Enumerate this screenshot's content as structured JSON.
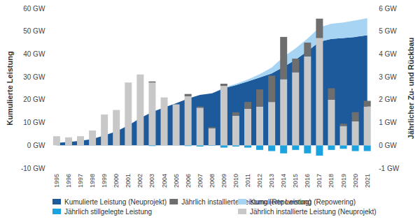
{
  "chart_data": {
    "type": "bar",
    "categories": [
      "1995",
      "1996",
      "1997",
      "1998",
      "1999",
      "2000",
      "2001",
      "2002",
      "2003",
      "2004",
      "2005",
      "2006",
      "2007",
      "2008",
      "2009",
      "2010",
      "2011",
      "2012",
      "2013",
      "2014",
      "2015",
      "2016",
      "2017",
      "2018",
      "2019",
      "2020",
      "2021"
    ],
    "ylabel": "Kumulierte Leistung",
    "y2label": "Jährlicher Zu- und Rückbau",
    "ylim": [
      -10,
      60
    ],
    "yticks": [
      {
        "value": -10,
        "label": "-10 GW"
      },
      {
        "value": 0,
        "label": "0 GW"
      },
      {
        "value": 10,
        "label": "10 GW"
      },
      {
        "value": 20,
        "label": "20 GW"
      },
      {
        "value": 30,
        "label": "30 GW"
      },
      {
        "value": 40,
        "label": "40 GW"
      },
      {
        "value": 50,
        "label": "50 GW"
      },
      {
        "value": 60,
        "label": "60 GW"
      }
    ],
    "y2lim": [
      -1,
      6
    ],
    "y2ticks": [
      {
        "value": -1,
        "label": "-1 GW"
      },
      {
        "value": 0,
        "label": "0 GW"
      },
      {
        "value": 1,
        "label": "1 GW"
      },
      {
        "value": 2,
        "label": "2 GW"
      },
      {
        "value": 3,
        "label": "3 GW"
      },
      {
        "value": 4,
        "label": "4 GW"
      },
      {
        "value": 5,
        "label": "5 GW"
      },
      {
        "value": 6,
        "label": "6 GW"
      }
    ],
    "grid": false,
    "legend": "bottom",
    "stacked": true,
    "series": [
      {
        "name": "Kumulierte Leistung (Neuprojekt)",
        "type": "area",
        "color": "#1c5a9c",
        "values": [
          1.1,
          1.5,
          2.0,
          2.8,
          4.4,
          6.1,
          8.7,
          11.9,
          14.6,
          16.6,
          18.4,
          20.5,
          22.1,
          22.8,
          25.0,
          26.4,
          28.0,
          29.7,
          31.5,
          34.4,
          37.5,
          41.3,
          45.4,
          46.6,
          47.0,
          47.5,
          48.2
        ]
      },
      {
        "name": "Kumulierte Leistung (Repowering)",
        "type": "area",
        "color": "#a6d4f2",
        "values": [
          0,
          0,
          0,
          0,
          0,
          0,
          0,
          0,
          0,
          0,
          0,
          0,
          0,
          0,
          0.3,
          0.5,
          0.8,
          1.5,
          2.6,
          4.4,
          5.0,
          5.5,
          6.3,
          6.7,
          6.8,
          7.2,
          7.5
        ]
      },
      {
        "name": "Jährlich stillgelegte Leistung",
        "type": "bar",
        "axis": "y2",
        "color": "#1aa3e0",
        "values": [
          0,
          0,
          0,
          0,
          0,
          0,
          0,
          0,
          -0.03,
          0,
          0,
          -0.03,
          -0.05,
          -0.02,
          -0.1,
          -0.05,
          -0.1,
          -0.2,
          -0.25,
          -0.35,
          -0.2,
          -0.35,
          -0.45,
          -0.2,
          -0.15,
          -0.25,
          -0.25
        ]
      },
      {
        "name": "Jährlich installierte Leistung (Neuprojekt)",
        "type": "bar",
        "axis": "y2",
        "color": "#c8c8c8",
        "values": [
          0.4,
          0.35,
          0.4,
          0.65,
          1.35,
          1.55,
          2.75,
          3.1,
          2.75,
          2.1,
          1.8,
          2.15,
          1.65,
          0.75,
          2.6,
          1.3,
          1.6,
          1.7,
          1.9,
          2.9,
          3.2,
          3.9,
          4.7,
          2.0,
          0.85,
          1.05,
          1.7
        ]
      },
      {
        "name": "Jährlich installierte Leistung (Repowering)",
        "type": "bar",
        "axis": "y2",
        "color": "#6e6e6e",
        "values": [
          0,
          0,
          0,
          0,
          0,
          0,
          0,
          0,
          0.05,
          0,
          0,
          0.1,
          0.05,
          0.05,
          0.1,
          0.15,
          0.3,
          0.75,
          1.15,
          1.85,
          0.6,
          0.6,
          0.85,
          0.5,
          0.1,
          0.4,
          0.25
        ]
      }
    ]
  }
}
